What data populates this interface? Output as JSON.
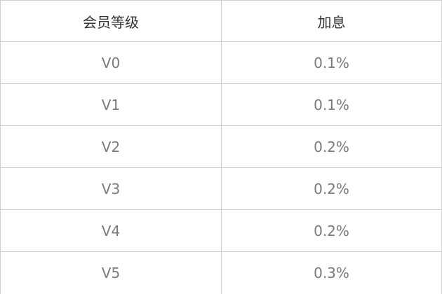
{
  "table": {
    "headers": {
      "level": "会员等级",
      "rate": "加息"
    },
    "rows": [
      {
        "level": "V0",
        "rate": "0.1%"
      },
      {
        "level": "V1",
        "rate": "0.1%"
      },
      {
        "level": "V2",
        "rate": "0.2%"
      },
      {
        "level": "V3",
        "rate": "0.2%"
      },
      {
        "level": "V4",
        "rate": "0.2%"
      },
      {
        "level": "V5",
        "rate": "0.3%"
      }
    ]
  }
}
